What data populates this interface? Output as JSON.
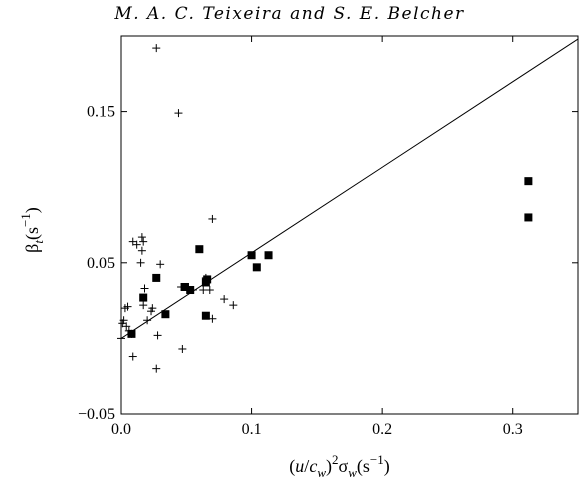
{
  "header": {
    "text": "M. A. C. Teixeira and S. E. Belcher"
  },
  "chart_data": {
    "type": "scatter",
    "xlim": [
      0.0,
      0.35
    ],
    "ylim": [
      -0.05,
      0.2
    ],
    "xticks": [
      0.0,
      0.1,
      0.2,
      0.3
    ],
    "xtick_labels": [
      "0.0",
      "0.1",
      "0.2",
      "0.3"
    ],
    "yticks": [
      -0.05,
      0.05,
      0.15
    ],
    "ytick_labels": [
      "−0.05",
      "0.05",
      "0.15"
    ],
    "grid": false,
    "xlabel": {
      "open": "(",
      "u": "u",
      "slash": "/",
      "c": "c",
      "csub": "w",
      "close": ")",
      "sq": "2",
      "sigma": "σ",
      "ssub": "w",
      "unit": "(s",
      "exp": "−1",
      "end": ")"
    },
    "ylabel": {
      "beta": "β",
      "sub": "t",
      "unit": "(s",
      "exp": "−1",
      "end": ")"
    },
    "fit_line": {
      "x": [
        0.0,
        0.35
      ],
      "y": [
        0.0,
        0.198
      ]
    },
    "series": [
      {
        "marker": "plus",
        "points": [
          [
            0.0,
            0.0
          ],
          [
            0.001,
            0.01
          ],
          [
            0.002,
            0.012
          ],
          [
            0.003,
            0.02
          ],
          [
            0.004,
            0.008
          ],
          [
            0.005,
            0.021
          ],
          [
            0.006,
            0.005
          ],
          [
            0.008,
            0.003
          ],
          [
            0.009,
            -0.012
          ],
          [
            0.009,
            0.064
          ],
          [
            0.012,
            0.062
          ],
          [
            0.015,
            0.05
          ],
          [
            0.016,
            0.058
          ],
          [
            0.016,
            0.067
          ],
          [
            0.017,
            0.064
          ],
          [
            0.017,
            0.022
          ],
          [
            0.018,
            0.033
          ],
          [
            0.02,
            0.012
          ],
          [
            0.023,
            0.018
          ],
          [
            0.024,
            0.02
          ],
          [
            0.027,
            -0.02
          ],
          [
            0.027,
            0.192
          ],
          [
            0.028,
            0.002
          ],
          [
            0.03,
            0.049
          ],
          [
            0.044,
            0.149
          ],
          [
            0.046,
            0.034
          ],
          [
            0.047,
            -0.007
          ],
          [
            0.055,
            0.032
          ],
          [
            0.063,
            0.032
          ],
          [
            0.065,
            0.04
          ],
          [
            0.068,
            0.032
          ],
          [
            0.07,
            0.013
          ],
          [
            0.07,
            0.079
          ],
          [
            0.079,
            0.026
          ],
          [
            0.086,
            0.022
          ]
        ]
      },
      {
        "marker": "square",
        "points": [
          [
            0.008,
            0.003
          ],
          [
            0.017,
            0.027
          ],
          [
            0.027,
            0.04
          ],
          [
            0.034,
            0.016
          ],
          [
            0.049,
            0.034
          ],
          [
            0.053,
            0.032
          ],
          [
            0.06,
            0.059
          ],
          [
            0.065,
            0.037
          ],
          [
            0.065,
            0.015
          ],
          [
            0.066,
            0.039
          ],
          [
            0.1,
            0.055
          ],
          [
            0.104,
            0.047
          ],
          [
            0.113,
            0.055
          ],
          [
            0.312,
            0.104
          ],
          [
            0.312,
            0.08
          ]
        ]
      }
    ]
  }
}
